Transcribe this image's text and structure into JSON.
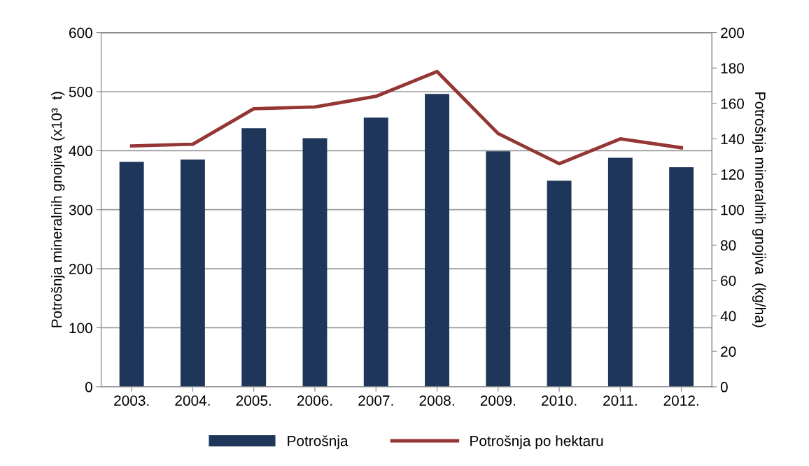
{
  "chart_data": {
    "type": "bar",
    "ylabel": "Potrošnja mineralnih gnojiva (x10³  t)",
    "y2label": "Potrošnja mineralnih gnojiva  (kg/ha)",
    "categories": [
      "2003.",
      "2004.",
      "2005.",
      "2006.",
      "2007.",
      "2008.",
      "2009.",
      "2010.",
      "2011.",
      "2012."
    ],
    "series": [
      {
        "name": "Potrošnja",
        "color": "#1d3659",
        "values": [
          381,
          385,
          438,
          421,
          456,
          496,
          399,
          349,
          388,
          372
        ]
      },
      {
        "name": "Potrošnja po hektaru",
        "type": "line",
        "axis": "y2",
        "color": "#943634",
        "values": [
          136,
          137,
          157,
          158,
          164,
          178,
          143,
          126,
          140,
          135
        ]
      }
    ],
    "ylim": [
      0,
      600
    ],
    "yticks": [
      0,
      100,
      200,
      300,
      400,
      500,
      600
    ],
    "y2lim": [
      0,
      200
    ],
    "y2ticks": [
      0,
      20,
      40,
      60,
      80,
      100,
      120,
      140,
      160,
      180,
      200
    ],
    "grid": "y",
    "legend": "bottom",
    "marker": "none",
    "line_style": "solid"
  }
}
